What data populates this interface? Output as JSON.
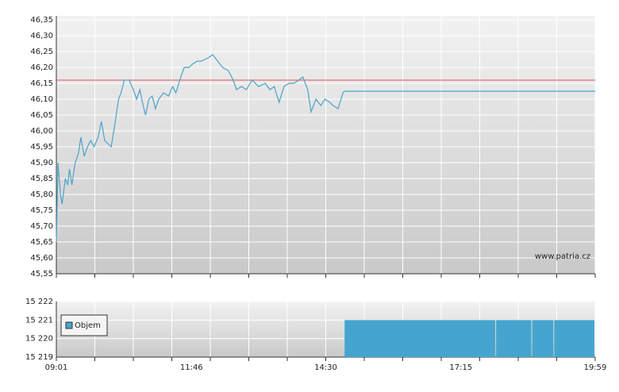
{
  "chart_data": [
    {
      "type": "line",
      "source": "www.patria.cz",
      "x": [
        "09:01",
        "09:03",
        "09:06",
        "09:08",
        "09:12",
        "09:15",
        "09:17",
        "09:20",
        "09:24",
        "09:28",
        "09:31",
        "09:35",
        "09:39",
        "09:43",
        "09:47",
        "09:52",
        "09:56",
        "10:00",
        "10:04",
        "10:08",
        "10:13",
        "10:17",
        "10:20",
        "10:24",
        "10:30",
        "10:35",
        "10:39",
        "10:43",
        "10:47",
        "10:50",
        "10:54",
        "10:58",
        "11:02",
        "11:06",
        "11:12",
        "11:18",
        "11:23",
        "11:27",
        "11:33",
        "11:37",
        "11:43",
        "11:47",
        "11:53",
        "11:58",
        "12:06",
        "12:12",
        "12:18",
        "12:24",
        "12:31",
        "12:37",
        "12:41",
        "12:47",
        "12:53",
        "13:00",
        "13:08",
        "13:16",
        "13:22",
        "13:27",
        "13:33",
        "13:39",
        "13:45",
        "13:51",
        "13:57",
        "14:02",
        "14:08",
        "14:12",
        "14:18",
        "14:24",
        "14:29",
        "14:35",
        "14:39",
        "14:45",
        "14:51",
        "14:53",
        "19:59"
      ],
      "series": [
        {
          "color": "#4aa3c8",
          "values": [
            45.65,
            45.9,
            45.8,
            45.77,
            45.85,
            45.83,
            45.88,
            45.83,
            45.9,
            45.93,
            45.98,
            45.92,
            45.95,
            45.97,
            45.95,
            45.98,
            46.03,
            45.97,
            45.96,
            45.95,
            46.03,
            46.1,
            46.12,
            46.16,
            46.16,
            46.13,
            46.1,
            46.13,
            46.08,
            46.05,
            46.1,
            46.11,
            46.07,
            46.1,
            46.12,
            46.11,
            46.14,
            46.12,
            46.17,
            46.2,
            46.2,
            46.21,
            46.22,
            46.22,
            46.23,
            46.24,
            46.22,
            46.2,
            46.19,
            46.16,
            46.13,
            46.14,
            46.13,
            46.16,
            46.14,
            46.15,
            46.13,
            46.14,
            46.09,
            46.14,
            46.15,
            46.15,
            46.16,
            46.17,
            46.13,
            46.06,
            46.1,
            46.08,
            46.1,
            46.09,
            46.08,
            46.07,
            46.12,
            46.125,
            46.125
          ]
        }
      ],
      "reference": {
        "value": 46.16,
        "color": "#d9534f"
      },
      "xlim": [
        "09:01",
        "19:59"
      ],
      "ylim": [
        45.55,
        46.35
      ],
      "yticks": [
        {
          "value": 45.55,
          "label": "45,55"
        },
        {
          "value": 45.6,
          "label": "45,60"
        },
        {
          "value": 45.65,
          "label": "45,65"
        },
        {
          "value": 45.7,
          "label": "45,70"
        },
        {
          "value": 45.75,
          "label": "45,75"
        },
        {
          "value": 45.8,
          "label": "45,80"
        },
        {
          "value": 45.85,
          "label": "45,85"
        },
        {
          "value": 45.9,
          "label": "45,90"
        },
        {
          "value": 45.95,
          "label": "45,95"
        },
        {
          "value": 46.0,
          "label": "46,00"
        },
        {
          "value": 46.05,
          "label": "46,05"
        },
        {
          "value": 46.1,
          "label": "46,10"
        },
        {
          "value": 46.15,
          "label": "46,15"
        },
        {
          "value": 46.2,
          "label": "46,20"
        },
        {
          "value": 46.25,
          "label": "46,25"
        },
        {
          "value": 46.3,
          "label": "46,30"
        },
        {
          "value": 46.35,
          "label": "46,35"
        }
      ],
      "grid": true
    },
    {
      "type": "bar",
      "x": [
        "14:53",
        "17:58",
        "18:42",
        "19:09"
      ],
      "series": [
        {
          "name": "Objem",
          "color": "#45a5cf",
          "values": [
            15221,
            15221,
            15221,
            15221
          ]
        }
      ],
      "xlim": [
        "09:01",
        "19:59"
      ],
      "xticks": [
        "09:01",
        "11:46",
        "14:30",
        "17:15",
        "19:59"
      ],
      "ylim": [
        15219,
        15222
      ],
      "yticks": [
        {
          "value": 15219,
          "label": "15 219"
        },
        {
          "value": 15220,
          "label": "15 220"
        },
        {
          "value": 15221,
          "label": "15 221"
        },
        {
          "value": 15222,
          "label": "15 222"
        }
      ],
      "grid": true,
      "legend": "top-left"
    }
  ]
}
